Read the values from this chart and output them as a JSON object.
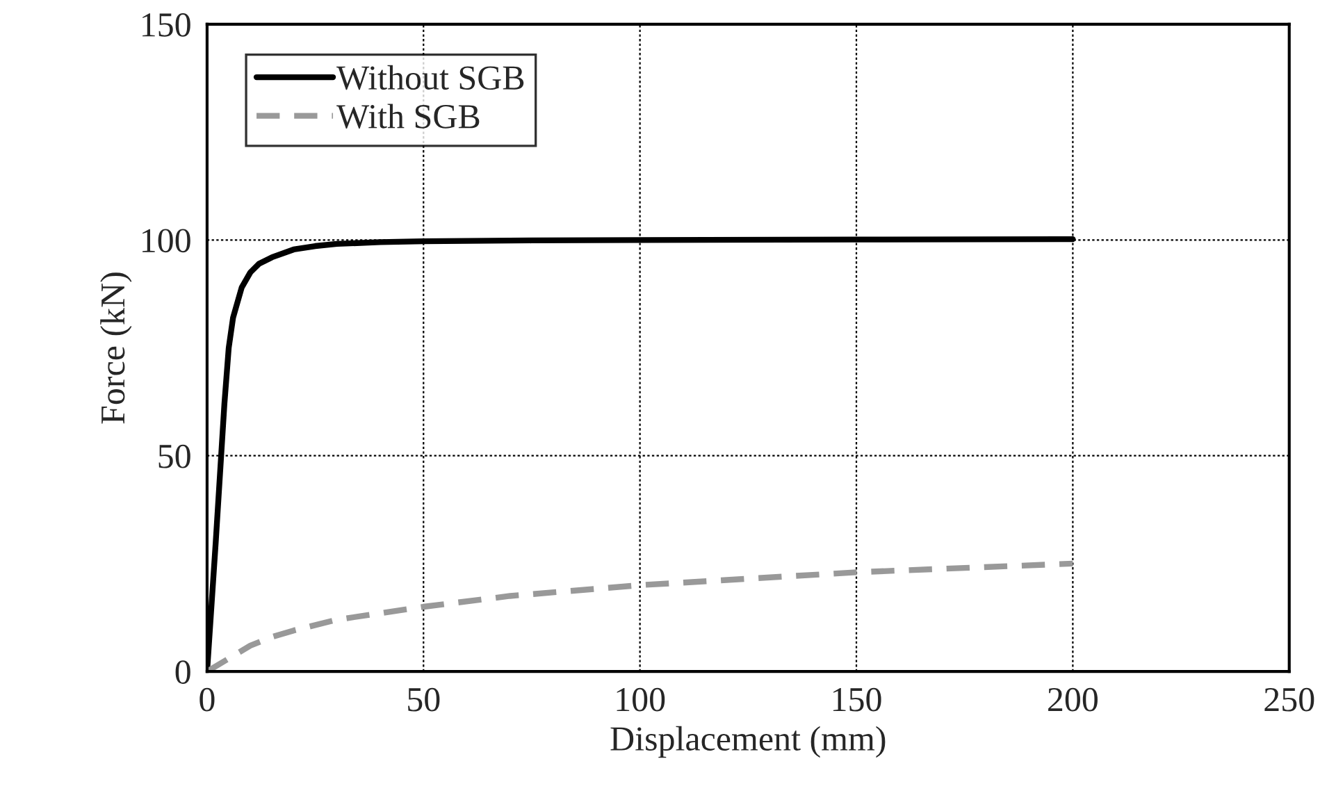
{
  "chart_data": {
    "type": "line",
    "xlabel": "Displacement (mm)",
    "ylabel": "Force (kN)",
    "xlim": [
      0,
      250
    ],
    "xticks": [
      0,
      50,
      100,
      150,
      200,
      250
    ],
    "ylim": [
      0,
      150
    ],
    "yticks": [
      0,
      50,
      100,
      150
    ],
    "grid": true,
    "legend": "top left",
    "marker": "none",
    "series": [
      {
        "name": "Without SGB",
        "color": "#000000",
        "line_style": "solid",
        "x": [
          0,
          2,
          4,
          5,
          6,
          8,
          10,
          12,
          15,
          20,
          25,
          30,
          40,
          50,
          75,
          100,
          150,
          200
        ],
        "values": [
          0,
          30,
          62,
          75,
          82,
          89,
          92.5,
          94.5,
          96,
          97.8,
          98.6,
          99.1,
          99.5,
          99.7,
          99.9,
          100,
          100.1,
          100.2
        ]
      },
      {
        "name": "With SGB",
        "color": "#999999",
        "line_style": "dashed",
        "x": [
          0,
          5,
          10,
          15,
          20,
          30,
          40,
          50,
          70,
          100,
          125,
          150,
          175,
          200
        ],
        "values": [
          0,
          3,
          6,
          8,
          9.5,
          12,
          13.5,
          15,
          17.5,
          20,
          21.5,
          23,
          24,
          25
        ]
      }
    ]
  }
}
